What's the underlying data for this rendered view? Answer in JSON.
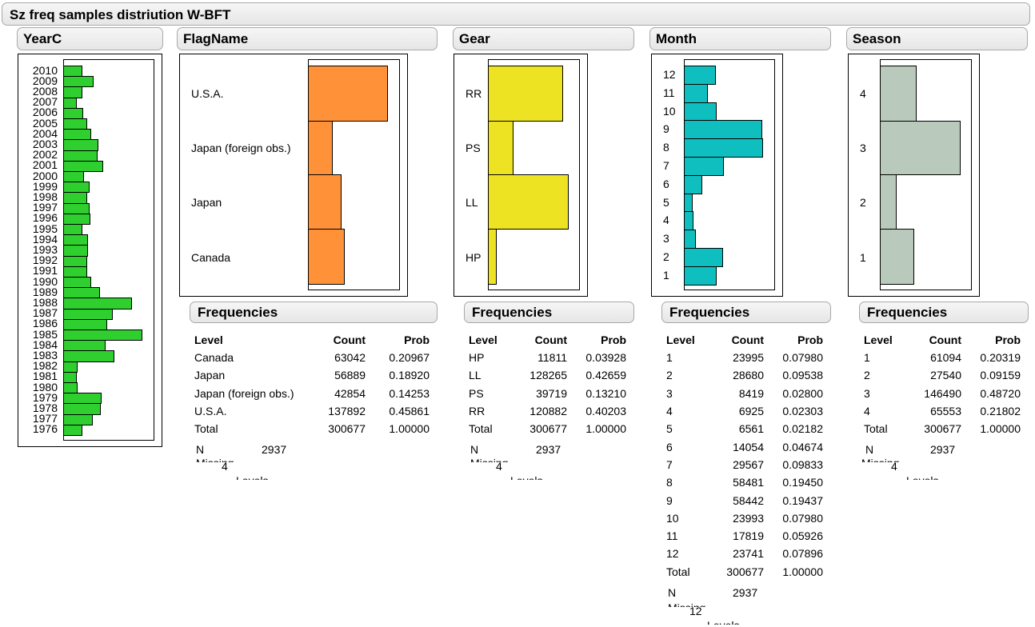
{
  "title": "Sz freq samples distriution W-BFT",
  "colors": {
    "yearc": "#2ecf2e",
    "flag": "#ff9139",
    "gear": "#eee323",
    "month": "#0fbfbf",
    "season": "#b9c9bb"
  },
  "panels": {
    "yearc": {
      "header": "YearC",
      "levels": [
        "2010",
        "2009",
        "2008",
        "2007",
        "2006",
        "2005",
        "2004",
        "2003",
        "2002",
        "2001",
        "2000",
        "1999",
        "1998",
        "1997",
        "1996",
        "1995",
        "1994",
        "1993",
        "1992",
        "1991",
        "1990",
        "1989",
        "1988",
        "1987",
        "1986",
        "1985",
        "1984",
        "1983",
        "1982",
        "1981",
        "1980",
        "1979",
        "1978",
        "1977",
        "1976"
      ]
    },
    "flag": {
      "header": "FlagName",
      "freq_header": "Frequencies",
      "col_level": "Level",
      "col_count": "Count",
      "col_prob": "Prob",
      "rows": [
        {
          "level": "Canada",
          "count": "63042",
          "prob": "0.20967"
        },
        {
          "level": "Japan",
          "count": "56889",
          "prob": "0.18920"
        },
        {
          "level": "Japan (foreign obs.)",
          "count": "42854",
          "prob": "0.14253"
        },
        {
          "level": "U.S.A.",
          "count": "137892",
          "prob": "0.45861"
        }
      ],
      "total": {
        "level": "Total",
        "count": "300677",
        "prob": "1.00000"
      },
      "n_label": "N",
      "n_value": "2937",
      "missing_label": "Missing",
      "levels_value": "4",
      "levels_label": "Levels",
      "axis_labels": [
        "U.S.A.",
        "Japan (foreign obs.)",
        "Japan",
        "Canada"
      ]
    },
    "gear": {
      "header": "Gear",
      "freq_header": "Frequencies",
      "col_level": "Level",
      "col_count": "Count",
      "col_prob": "Prob",
      "rows": [
        {
          "level": "HP",
          "count": "11811",
          "prob": "0.03928"
        },
        {
          "level": "LL",
          "count": "128265",
          "prob": "0.42659"
        },
        {
          "level": "PS",
          "count": "39719",
          "prob": "0.13210"
        },
        {
          "level": "RR",
          "count": "120882",
          "prob": "0.40203"
        }
      ],
      "total": {
        "level": "Total",
        "count": "300677",
        "prob": "1.00000"
      },
      "n_label": "N",
      "n_value": "2937",
      "missing_label": "Missing",
      "levels_value": "4",
      "levels_label": "Levels",
      "axis_labels": [
        "RR",
        "PS",
        "LL",
        "HP"
      ]
    },
    "month": {
      "header": "Month",
      "freq_header": "Frequencies",
      "col_level": "Level",
      "col_count": "Count",
      "col_prob": "Prob",
      "rows": [
        {
          "level": "1",
          "count": "23995",
          "prob": "0.07980"
        },
        {
          "level": "2",
          "count": "28680",
          "prob": "0.09538"
        },
        {
          "level": "3",
          "count": "8419",
          "prob": "0.02800"
        },
        {
          "level": "4",
          "count": "6925",
          "prob": "0.02303"
        },
        {
          "level": "5",
          "count": "6561",
          "prob": "0.02182"
        },
        {
          "level": "6",
          "count": "14054",
          "prob": "0.04674"
        },
        {
          "level": "7",
          "count": "29567",
          "prob": "0.09833"
        },
        {
          "level": "8",
          "count": "58481",
          "prob": "0.19450"
        },
        {
          "level": "9",
          "count": "58442",
          "prob": "0.19437"
        },
        {
          "level": "10",
          "count": "23993",
          "prob": "0.07980"
        },
        {
          "level": "11",
          "count": "17819",
          "prob": "0.05926"
        },
        {
          "level": "12",
          "count": "23741",
          "prob": "0.07896"
        }
      ],
      "total": {
        "level": "Total",
        "count": "300677",
        "prob": "1.00000"
      },
      "n_label": "N",
      "n_value": "2937",
      "missing_label": "Missing",
      "levels_value": "12",
      "levels_label": "Levels",
      "axis_labels": [
        "12",
        "11",
        "10",
        "9",
        "8",
        "7",
        "6",
        "5",
        "4",
        "3",
        "2",
        "1"
      ]
    },
    "season": {
      "header": "Season",
      "freq_header": "Frequencies",
      "col_level": "Level",
      "col_count": "Count",
      "col_prob": "Prob",
      "rows": [
        {
          "level": "1",
          "count": "61094",
          "prob": "0.20319"
        },
        {
          "level": "2",
          "count": "27540",
          "prob": "0.09159"
        },
        {
          "level": "3",
          "count": "146490",
          "prob": "0.48720"
        },
        {
          "level": "4",
          "count": "65553",
          "prob": "0.21802"
        }
      ],
      "total": {
        "level": "Total",
        "count": "300677",
        "prob": "1.00000"
      },
      "n_label": "N",
      "n_value": "2937",
      "missing_label": "Missing",
      "levels_value": "4",
      "levels_label": "Levels",
      "axis_labels": [
        "4",
        "3",
        "2",
        "1"
      ]
    }
  }
}
